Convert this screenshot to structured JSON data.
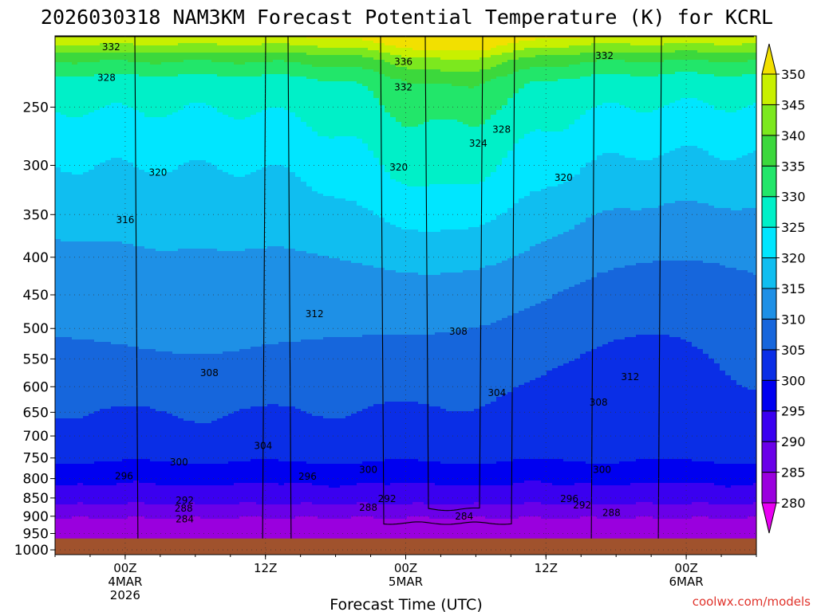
{
  "chart_data": {
    "type": "heatmap",
    "title": "2026030318 NAM3KM Forecast Potential Temperature (K) for KCRL",
    "xlabel": "Forecast Time (UTC)",
    "ylabel": "",
    "credit": "coolwx.com/models",
    "x_ticks": [
      {
        "label": "00Z",
        "date": "4MAR",
        "year": "2026",
        "hours": 6
      },
      {
        "label": "12Z",
        "date": "",
        "year": "",
        "hours": 18
      },
      {
        "label": "00Z",
        "date": "5MAR",
        "year": "",
        "hours": 30
      },
      {
        "label": "12Z",
        "date": "",
        "year": "",
        "hours": 42
      },
      {
        "label": "00Z",
        "date": "6MAR",
        "year": "",
        "hours": 54
      }
    ],
    "xlim_hours": [
      0,
      60
    ],
    "y_ticks": [
      "250",
      "300",
      "350",
      "400",
      "450",
      "500",
      "550",
      "600",
      "650",
      "700",
      "750",
      "800",
      "850",
      "900",
      "950",
      "1000"
    ],
    "y_values_hpa": [
      250,
      300,
      350,
      400,
      450,
      500,
      550,
      600,
      650,
      700,
      750,
      800,
      850,
      900,
      950,
      1000
    ],
    "ylim_hpa": [
      200,
      1015
    ],
    "surface_pressure_hpa": 965,
    "colorbar": {
      "levels": [
        280,
        285,
        290,
        295,
        300,
        305,
        310,
        315,
        320,
        325,
        330,
        335,
        340,
        345,
        350
      ],
      "labels": [
        "280",
        "285",
        "290",
        "295",
        "300",
        "305",
        "310",
        "315",
        "320",
        "325",
        "330",
        "335",
        "340",
        "345",
        "350"
      ],
      "colors": [
        "#9a00de",
        "#6a00e8",
        "#3a00f0",
        "#0000f0",
        "#0a2ee6",
        "#1666dc",
        "#1e90e6",
        "#10bef0",
        "#00e6ff",
        "#00f0c8",
        "#22e66a",
        "#3cd83c",
        "#7ce81e",
        "#c8f000",
        "#f8f000"
      ],
      "extend_low": "#e800f2",
      "extend_high": "#f2e000"
    },
    "surface_color": "#a0522d",
    "contour_labels": [
      {
        "value": "332",
        "hours": 4.8,
        "hpa": 207
      },
      {
        "value": "336",
        "hours": 29.8,
        "hpa": 217
      },
      {
        "value": "332",
        "hours": 47.0,
        "hpa": 213
      },
      {
        "value": "328",
        "hours": 4.4,
        "hpa": 228
      },
      {
        "value": "332",
        "hours": 29.8,
        "hpa": 235
      },
      {
        "value": "328",
        "hours": 38.2,
        "hpa": 268
      },
      {
        "value": "324",
        "hours": 36.2,
        "hpa": 280
      },
      {
        "value": "320",
        "hours": 8.8,
        "hpa": 307
      },
      {
        "value": "320",
        "hours": 29.4,
        "hpa": 302
      },
      {
        "value": "320",
        "hours": 43.5,
        "hpa": 312
      },
      {
        "value": "316",
        "hours": 6.0,
        "hpa": 356
      },
      {
        "value": "312",
        "hours": 22.2,
        "hpa": 478
      },
      {
        "value": "308",
        "hours": 34.5,
        "hpa": 505
      },
      {
        "value": "308",
        "hours": 13.2,
        "hpa": 575
      },
      {
        "value": "312",
        "hours": 49.2,
        "hpa": 582
      },
      {
        "value": "304",
        "hours": 37.8,
        "hpa": 612
      },
      {
        "value": "308",
        "hours": 46.5,
        "hpa": 630
      },
      {
        "value": "304",
        "hours": 17.8,
        "hpa": 722
      },
      {
        "value": "300",
        "hours": 10.6,
        "hpa": 760
      },
      {
        "value": "300",
        "hours": 26.8,
        "hpa": 778
      },
      {
        "value": "300",
        "hours": 46.8,
        "hpa": 778
      },
      {
        "value": "296",
        "hours": 5.9,
        "hpa": 794
      },
      {
        "value": "296",
        "hours": 21.6,
        "hpa": 795
      },
      {
        "value": "292",
        "hours": 11.1,
        "hpa": 857
      },
      {
        "value": "292",
        "hours": 28.4,
        "hpa": 852
      },
      {
        "value": "296",
        "hours": 44.0,
        "hpa": 852
      },
      {
        "value": "288",
        "hours": 11.0,
        "hpa": 878
      },
      {
        "value": "288",
        "hours": 26.8,
        "hpa": 876
      },
      {
        "value": "292",
        "hours": 45.1,
        "hpa": 870
      },
      {
        "value": "288",
        "hours": 47.6,
        "hpa": 890
      },
      {
        "value": "284",
        "hours": 11.1,
        "hpa": 908
      },
      {
        "value": "284",
        "hours": 35.0,
        "hpa": 900
      }
    ]
  }
}
